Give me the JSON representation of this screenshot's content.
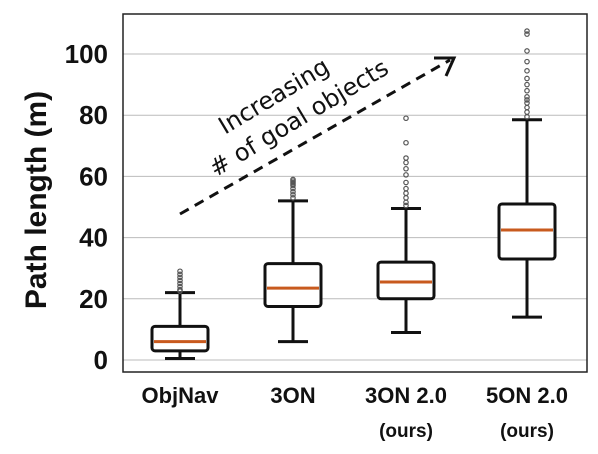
{
  "chart_data": {
    "type": "box",
    "ylabel": "Path length (m)",
    "xlabel": "",
    "ylim": [
      0,
      112
    ],
    "yticks": [
      0,
      20,
      40,
      60,
      80,
      100
    ],
    "grid": true,
    "annotation": {
      "lines": [
        "Increasing",
        "# of goal objects"
      ],
      "arrow": "dashed, pointing up-right"
    },
    "categories": [
      {
        "name": "ObjNav",
        "sub": ""
      },
      {
        "name": "3ON",
        "sub": ""
      },
      {
        "name": "3ON 2.0",
        "sub": "(ours)"
      },
      {
        "name": "5ON 2.0",
        "sub": "(ours)"
      }
    ],
    "boxes": [
      {
        "whisker_low": 0.5,
        "q1": 3,
        "median": 6,
        "q3": 11,
        "whisker_high": 22,
        "outliers": [
          22.5,
          23,
          24,
          25,
          26,
          27,
          28,
          29
        ]
      },
      {
        "whisker_low": 6,
        "q1": 17.5,
        "median": 23.5,
        "q3": 31.5,
        "whisker_high": 52,
        "outliers": [
          53,
          54,
          55,
          56,
          57,
          57.5,
          58,
          58.5,
          59
        ]
      },
      {
        "whisker_low": 9,
        "q1": 20,
        "median": 25.5,
        "q3": 32,
        "whisker_high": 49.5,
        "outliers": [
          50.5,
          51.5,
          53,
          54.5,
          56,
          58,
          60.5,
          62.5,
          64.5,
          66,
          71,
          79
        ]
      },
      {
        "whisker_low": 14,
        "q1": 33,
        "median": 42.5,
        "q3": 51,
        "whisker_high": 78.5,
        "outliers": [
          79.5,
          81,
          82.5,
          84,
          85,
          86,
          88,
          90,
          92,
          94.5,
          97.5,
          101,
          106.5,
          107.5
        ]
      }
    ],
    "colors": {
      "median": "#c85a1e",
      "box": "#111111",
      "grid": "#bbbbbb",
      "outlier": "#555555"
    }
  }
}
